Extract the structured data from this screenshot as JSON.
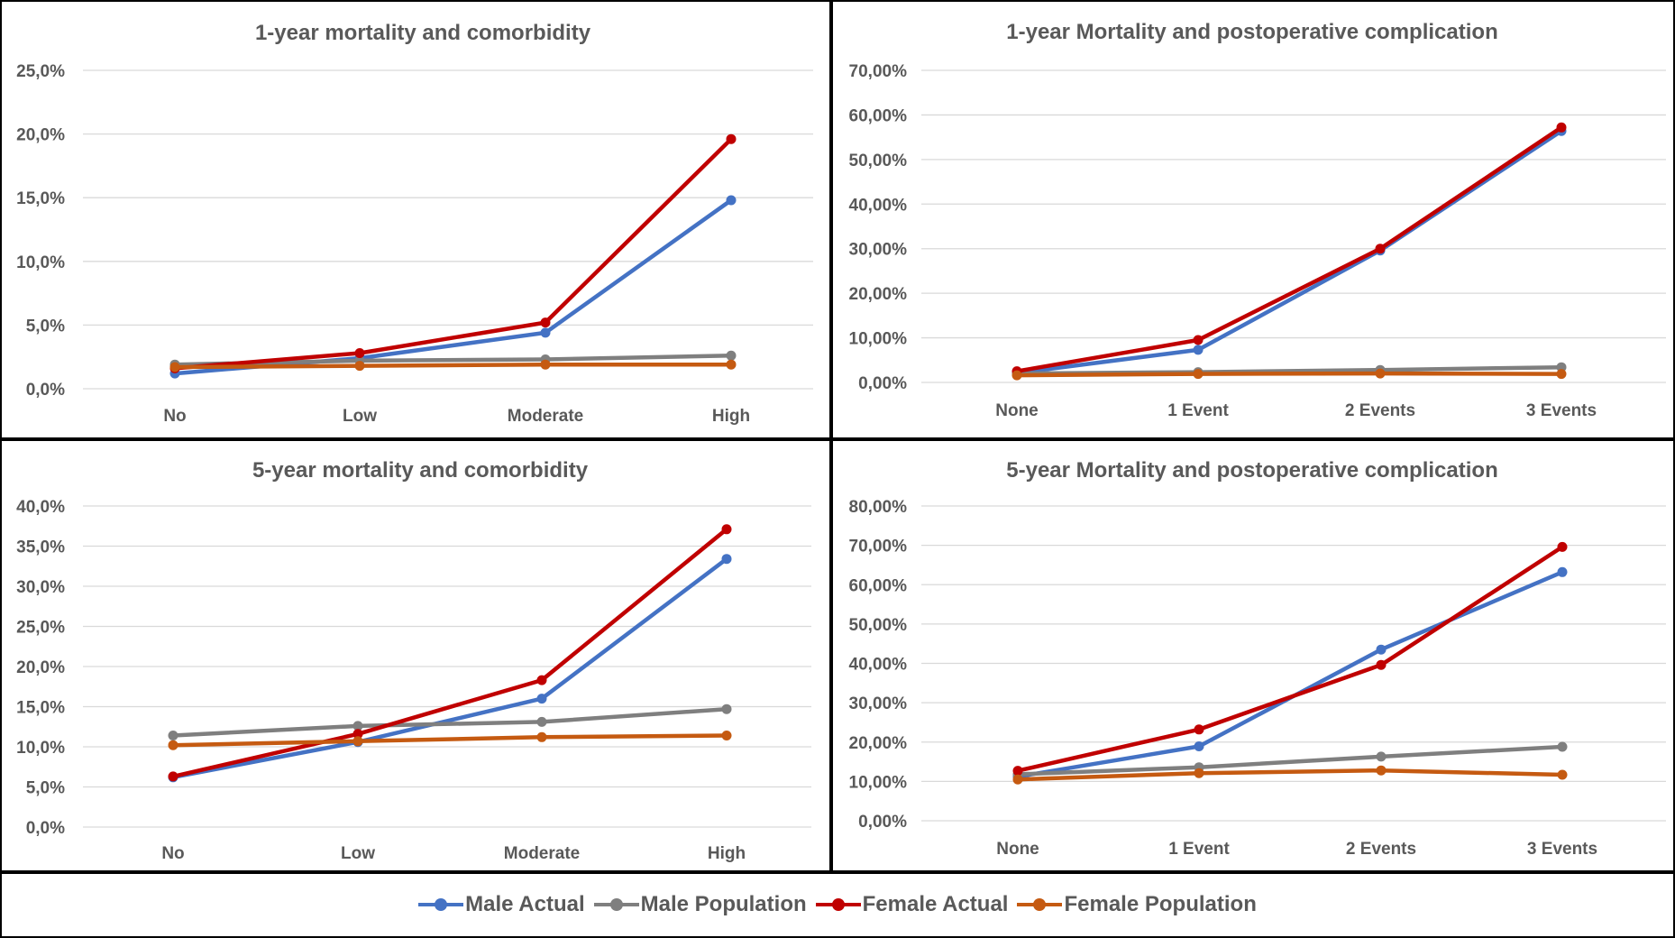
{
  "legend": [
    {
      "name": "Male Actual",
      "color": "#4472C4"
    },
    {
      "name": "Male Population",
      "color": "#7F7F7F"
    },
    {
      "name": "Female Actual",
      "color": "#C00000"
    },
    {
      "name": "Female Population",
      "color": "#C55A11"
    }
  ],
  "chart_data": [
    {
      "type": "line",
      "title": "1-year mortality and comorbidity",
      "categories": [
        "No",
        "Low",
        "Moderate",
        "High"
      ],
      "yticks": [
        "0,0%",
        "5,0%",
        "10,0%",
        "15,0%",
        "20,0%",
        "25,0%"
      ],
      "ylim": [
        0,
        25
      ],
      "grid": true,
      "legend": "bottom",
      "series": [
        {
          "name": "Male Actual",
          "color": "#4472C4",
          "values": [
            1.2,
            2.4,
            4.4,
            14.8
          ]
        },
        {
          "name": "Male Population",
          "color": "#7F7F7F",
          "values": [
            1.9,
            2.2,
            2.3,
            2.6
          ]
        },
        {
          "name": "Female Actual",
          "color": "#C00000",
          "values": [
            1.6,
            2.8,
            5.2,
            19.6
          ]
        },
        {
          "name": "Female Population",
          "color": "#C55A11",
          "values": [
            1.7,
            1.8,
            1.9,
            1.9
          ]
        }
      ]
    },
    {
      "type": "line",
      "title": "1-year Mortality and postoperative complication",
      "categories": [
        "None",
        "1 Event",
        "2 Events",
        "3 Events"
      ],
      "yticks": [
        "0,00%",
        "10,00%",
        "20,00%",
        "30,00%",
        "40,00%",
        "50,00%",
        "60,00%",
        "70,00%"
      ],
      "ylim": [
        0,
        70
      ],
      "grid": true,
      "legend": "bottom",
      "series": [
        {
          "name": "Male Actual",
          "color": "#4472C4",
          "values": [
            2.1,
            7.3,
            29.6,
            56.4
          ]
        },
        {
          "name": "Male Population",
          "color": "#7F7F7F",
          "values": [
            2.0,
            2.3,
            2.8,
            3.4
          ]
        },
        {
          "name": "Female Actual",
          "color": "#C00000",
          "values": [
            2.5,
            9.5,
            30.0,
            57.2
          ]
        },
        {
          "name": "Female Population",
          "color": "#C55A11",
          "values": [
            1.6,
            1.9,
            2.0,
            1.9
          ]
        }
      ]
    },
    {
      "type": "line",
      "title": "5-year mortality and comorbidity",
      "categories": [
        "No",
        "Low",
        "Moderate",
        "High"
      ],
      "yticks": [
        "0,0%",
        "5,0%",
        "10,0%",
        "15,0%",
        "20,0%",
        "25,0%",
        "30,0%",
        "35,0%",
        "40,0%"
      ],
      "ylim": [
        0,
        40
      ],
      "grid": true,
      "legend": "bottom",
      "series": [
        {
          "name": "Male Actual",
          "color": "#4472C4",
          "values": [
            6.2,
            10.6,
            16.0,
            33.4
          ]
        },
        {
          "name": "Male Population",
          "color": "#7F7F7F",
          "values": [
            11.4,
            12.6,
            13.1,
            14.7
          ]
        },
        {
          "name": "Female Actual",
          "color": "#C00000",
          "values": [
            6.3,
            11.6,
            18.3,
            37.1
          ]
        },
        {
          "name": "Female Population",
          "color": "#C55A11",
          "values": [
            10.2,
            10.7,
            11.2,
            11.4
          ]
        }
      ]
    },
    {
      "type": "line",
      "title": "5-year Mortality and postoperative complication",
      "categories": [
        "None",
        "1 Event",
        "2 Events",
        "3 Events"
      ],
      "yticks": [
        "0,00%",
        "10,00%",
        "20,00%",
        "30,00%",
        "40,00%",
        "50,00%",
        "60,00%",
        "70,00%",
        "80,00%"
      ],
      "ylim": [
        0,
        80
      ],
      "grid": true,
      "legend": "bottom",
      "series": [
        {
          "name": "Male Actual",
          "color": "#4472C4",
          "values": [
            11.2,
            18.9,
            43.5,
            63.2
          ]
        },
        {
          "name": "Male Population",
          "color": "#7F7F7F",
          "values": [
            11.8,
            13.6,
            16.3,
            18.8
          ]
        },
        {
          "name": "Female Actual",
          "color": "#C00000",
          "values": [
            12.7,
            23.2,
            39.6,
            69.6
          ]
        },
        {
          "name": "Female Population",
          "color": "#C55A11",
          "values": [
            10.5,
            12.1,
            12.8,
            11.7
          ]
        }
      ]
    }
  ]
}
